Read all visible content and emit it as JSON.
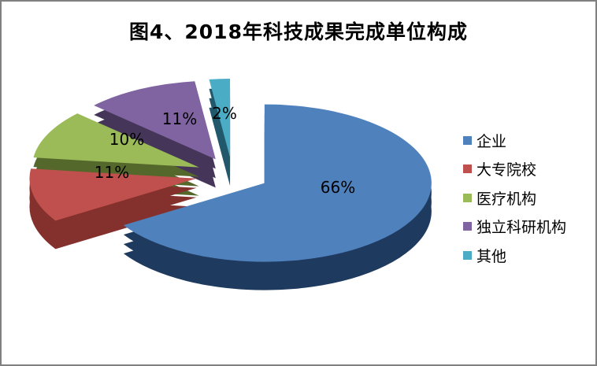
{
  "frame": {
    "border_color": "#808080",
    "background": "#ffffff"
  },
  "chart_data": {
    "type": "pie",
    "style": "3d-exploded-pie",
    "title": "图4、2018年科技成果完成单位构成",
    "categories": [
      "企业",
      "大专院校",
      "医疗机构",
      "独立科研机构",
      "其他"
    ],
    "values": [
      66,
      11,
      10,
      11,
      2
    ],
    "unit": "%",
    "data_labels": [
      "66%",
      "11%",
      "10%",
      "11%",
      "2%"
    ],
    "colors": [
      "#4F81BD",
      "#C0504D",
      "#9BBB59",
      "#8064A2",
      "#4BACC6"
    ],
    "side_colors": [
      "#1F3A5F",
      "#84302C",
      "#55682B",
      "#453659",
      "#21586B"
    ],
    "start_angle_deg": 0,
    "direction": "clockwise",
    "legend_position": "right",
    "title_color": "#000000",
    "label_color": "#000000"
  }
}
